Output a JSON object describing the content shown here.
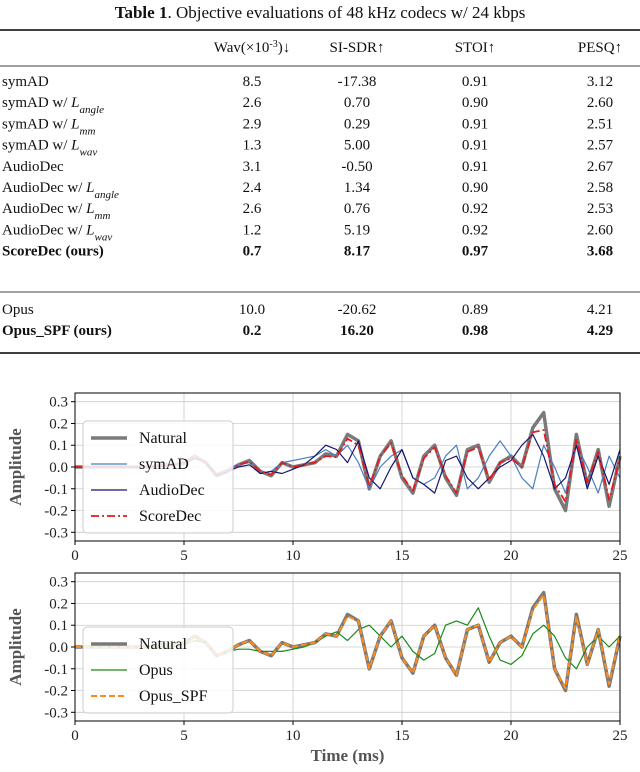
{
  "table": {
    "caption_label": "Table 1",
    "caption": ". Objective evaluations of 48 kHz codecs w/ 24 kbps",
    "columns": [
      [
        "Wav(×10",
        "-3",
        ")↓"
      ],
      "SI-SDR↑",
      "STOI↑",
      "PESQ↑"
    ],
    "groups": [
      [
        {
          "label": [
            "symAD"
          ],
          "cells": [
            "8.5",
            "-17.38",
            "0.91",
            "3.12"
          ]
        },
        {
          "label": [
            "symAD w/ ",
            "L",
            "angle"
          ],
          "cells": [
            "2.6",
            "0.70",
            "0.90",
            "2.60"
          ]
        },
        {
          "label": [
            "symAD w/ ",
            "L",
            "mm"
          ],
          "cells": [
            "2.9",
            "0.29",
            "0.91",
            "2.51"
          ]
        },
        {
          "label": [
            "symAD w/ ",
            "L",
            "wav"
          ],
          "cells": [
            "1.3",
            "5.00",
            "0.91",
            "2.57"
          ]
        },
        {
          "label": [
            "AudioDec"
          ],
          "cells": [
            "3.1",
            "-0.50",
            "0.91",
            "2.67"
          ]
        },
        {
          "label": [
            "AudioDec w/ ",
            "L",
            "angle"
          ],
          "cells": [
            "2.4",
            "1.34",
            "0.90",
            "2.58"
          ]
        },
        {
          "label": [
            "AudioDec w/ ",
            "L",
            "mm"
          ],
          "cells": [
            "2.6",
            "0.76",
            "0.92",
            "2.53"
          ]
        },
        {
          "label": [
            "AudioDec w/ ",
            "L",
            "wav"
          ],
          "cells": [
            "1.2",
            "5.19",
            "0.92",
            "2.60"
          ]
        },
        {
          "label": [
            "ScoreDec (ours)"
          ],
          "cells": [
            "0.7",
            "8.17",
            "0.97",
            "3.68"
          ],
          "bold": true
        }
      ],
      [
        {
          "label": [
            "Opus"
          ],
          "cells": [
            "10.0",
            "-20.62",
            "0.89",
            "4.21"
          ]
        },
        {
          "label": [
            "Opus_SPF (ours)"
          ],
          "cells": [
            "0.2",
            "16.20",
            "0.98",
            "4.29"
          ],
          "bold": true
        }
      ]
    ]
  },
  "chart_data": [
    {
      "type": "line",
      "ylabel": "Amplitude",
      "legend": "center left",
      "grid": true,
      "x": [
        0,
        0.5,
        1,
        1.5,
        2,
        2.5,
        3,
        3.5,
        4,
        4.5,
        5,
        5.5,
        6,
        6.5,
        7,
        7.5,
        8,
        8.5,
        9,
        9.5,
        10,
        10.5,
        11,
        11.5,
        12,
        12.5,
        13,
        13.5,
        14,
        14.5,
        15,
        15.5,
        16,
        16.5,
        17,
        17.5,
        18,
        18.5,
        19,
        19.5,
        20,
        20.5,
        21,
        21.5,
        22,
        22.5,
        23,
        23.5,
        24,
        24.5,
        25
      ],
      "xlim": [
        0,
        25
      ],
      "xticks": [
        0,
        5,
        10,
        15,
        20,
        25
      ],
      "ylim": [
        -0.34,
        0.34
      ],
      "yticks": [
        -0.3,
        -0.2,
        -0.1,
        {
          "value": 0,
          "label": "0.0"
        },
        0.1,
        0.2,
        0.3
      ],
      "series": [
        {
          "name": "Natural",
          "color": "#7a7a7a",
          "linewidth": 3.5,
          "style": "solid",
          "values": [
            0,
            0,
            0,
            0,
            0,
            0,
            0,
            0,
            0.01,
            0.01,
            0.02,
            0.05,
            0.02,
            -0.04,
            -0.02,
            0.01,
            0.03,
            -0.02,
            -0.04,
            0.02,
            0,
            0.01,
            0.02,
            0.06,
            0.05,
            0.15,
            0.12,
            -0.1,
            0.05,
            0.12,
            -0.05,
            -0.12,
            0.05,
            0.1,
            -0.05,
            -0.13,
            0.08,
            0.1,
            -0.07,
            0.02,
            0.05,
            0,
            0.18,
            0.25,
            -0.1,
            -0.2,
            0.15,
            -0.08,
            0.08,
            -0.18,
            0.05
          ]
        },
        {
          "name": "symAD",
          "color": "#4a7fc1",
          "linewidth": 1.2,
          "style": "solid",
          "values": [
            0,
            0,
            0,
            0,
            0,
            0,
            0,
            0,
            0,
            0.005,
            0.01,
            0.04,
            0.02,
            -0.03,
            -0.01,
            0.01,
            0.02,
            -0.03,
            -0.02,
            0.02,
            0.03,
            0.04,
            0.05,
            0.08,
            0.05,
            0.1,
            0.02,
            -0.1,
            0,
            0.05,
            0.08,
            -0.05,
            -0.08,
            -0.05,
            0.05,
            0.1,
            -0.1,
            -0.05,
            0.05,
            0.12,
            0.05,
            -0.05,
            -0.1,
            0.1,
            0,
            -0.12,
            0.1,
            0,
            -0.12,
            0.05,
            -0.05
          ]
        },
        {
          "name": "AudioDec",
          "color": "#16166e",
          "linewidth": 1.2,
          "style": "solid",
          "values": [
            0,
            0,
            0,
            0,
            0,
            0,
            0,
            0,
            0.005,
            0.01,
            0.02,
            0.04,
            0.02,
            -0.04,
            -0.02,
            0,
            0.01,
            -0.03,
            -0.02,
            -0.03,
            -0.01,
            0.01,
            0.05,
            0.1,
            0.08,
            0.02,
            0.12,
            -0.05,
            -0.1,
            0,
            0.08,
            -0.05,
            -0.08,
            -0.12,
            0.03,
            0.05,
            -0.05,
            -0.1,
            -0.05,
            0,
            0.03,
            0.1,
            0.15,
            0.05,
            -0.1,
            -0.05,
            0.1,
            -0.1,
            0.05,
            -0.08,
            0.08
          ]
        },
        {
          "name": "ScoreDec",
          "color": "#e8191c",
          "linewidth": 1.8,
          "style": "dashdot",
          "values": [
            0,
            0,
            0,
            0,
            0,
            0,
            0,
            0,
            0.01,
            0.01,
            0.02,
            0.045,
            0.02,
            -0.035,
            -0.02,
            0.01,
            0.025,
            -0.02,
            -0.035,
            0.02,
            0,
            0.01,
            0.02,
            0.05,
            0.045,
            0.13,
            0.1,
            -0.09,
            0.05,
            0.11,
            -0.04,
            -0.11,
            0.04,
            0.09,
            -0.04,
            -0.12,
            0.07,
            0.09,
            -0.06,
            0.02,
            0.04,
            0,
            0.16,
            0.17,
            -0.08,
            -0.16,
            0.13,
            -0.07,
            0.07,
            -0.15,
            0.04
          ]
        }
      ]
    },
    {
      "type": "line",
      "ylabel": "Amplitude",
      "xlabel": "Time (ms)",
      "legend": "lower left",
      "grid": true,
      "x": [
        0,
        0.5,
        1,
        1.5,
        2,
        2.5,
        3,
        3.5,
        4,
        4.5,
        5,
        5.5,
        6,
        6.5,
        7,
        7.5,
        8,
        8.5,
        9,
        9.5,
        10,
        10.5,
        11,
        11.5,
        12,
        12.5,
        13,
        13.5,
        14,
        14.5,
        15,
        15.5,
        16,
        16.5,
        17,
        17.5,
        18,
        18.5,
        19,
        19.5,
        20,
        20.5,
        21,
        21.5,
        22,
        22.5,
        23,
        23.5,
        24,
        24.5,
        25
      ],
      "xlim": [
        0,
        25
      ],
      "xticks": [
        0,
        5,
        10,
        15,
        20,
        25
      ],
      "ylim": [
        -0.34,
        0.34
      ],
      "yticks": [
        -0.3,
        -0.2,
        -0.1,
        {
          "value": 0,
          "label": "0.0"
        },
        0.1,
        0.2,
        0.3
      ],
      "series": [
        {
          "name": "Natural",
          "color": "#7a7a7a",
          "linewidth": 3.5,
          "style": "solid",
          "values": [
            0,
            0,
            0,
            0,
            0,
            0,
            0,
            0,
            0.01,
            0.01,
            0.02,
            0.05,
            0.02,
            -0.04,
            -0.02,
            0.01,
            0.03,
            -0.02,
            -0.04,
            0.02,
            0,
            0.01,
            0.02,
            0.06,
            0.05,
            0.15,
            0.12,
            -0.1,
            0.05,
            0.12,
            -0.05,
            -0.12,
            0.05,
            0.1,
            -0.05,
            -0.13,
            0.08,
            0.1,
            -0.07,
            0.02,
            0.05,
            0,
            0.18,
            0.25,
            -0.1,
            -0.2,
            0.15,
            -0.08,
            0.08,
            -0.18,
            0.05
          ]
        },
        {
          "name": "Opus",
          "color": "#1a8a1a",
          "linewidth": 1.2,
          "style": "solid",
          "values": [
            0,
            0,
            0,
            0,
            0,
            0,
            0,
            0,
            0,
            0,
            0.01,
            0.03,
            0.02,
            -0.04,
            -0.02,
            -0.01,
            -0.01,
            -0.02,
            -0.02,
            -0.02,
            -0.01,
            0,
            0.02,
            0.05,
            0.07,
            0.03,
            0.08,
            0.1,
            0.05,
            0,
            0.05,
            -0.02,
            -0.06,
            -0.03,
            0.1,
            0.12,
            0.1,
            0.18,
            0.05,
            -0.06,
            -0.08,
            -0.04,
            0.06,
            0.1,
            0.05,
            -0.05,
            -0.1,
            0,
            0.05,
            0,
            0.05
          ]
        },
        {
          "name": "Opus_SPF",
          "color": "#ff8c1a",
          "linewidth": 2,
          "style": "dashed",
          "values": [
            0,
            0,
            0,
            0,
            0,
            0,
            0,
            0,
            0.01,
            0.01,
            0.02,
            0.05,
            0.02,
            -0.04,
            -0.02,
            0.01,
            0.03,
            -0.02,
            -0.04,
            0.02,
            0,
            0.01,
            0.02,
            0.06,
            0.05,
            0.14,
            0.12,
            -0.1,
            0.05,
            0.12,
            -0.05,
            -0.12,
            0.05,
            0.1,
            -0.05,
            -0.13,
            0.08,
            0.1,
            -0.07,
            0.02,
            0.05,
            0,
            0.17,
            0.24,
            -0.1,
            -0.19,
            0.14,
            -0.08,
            0.08,
            -0.17,
            0.05
          ]
        }
      ]
    }
  ]
}
